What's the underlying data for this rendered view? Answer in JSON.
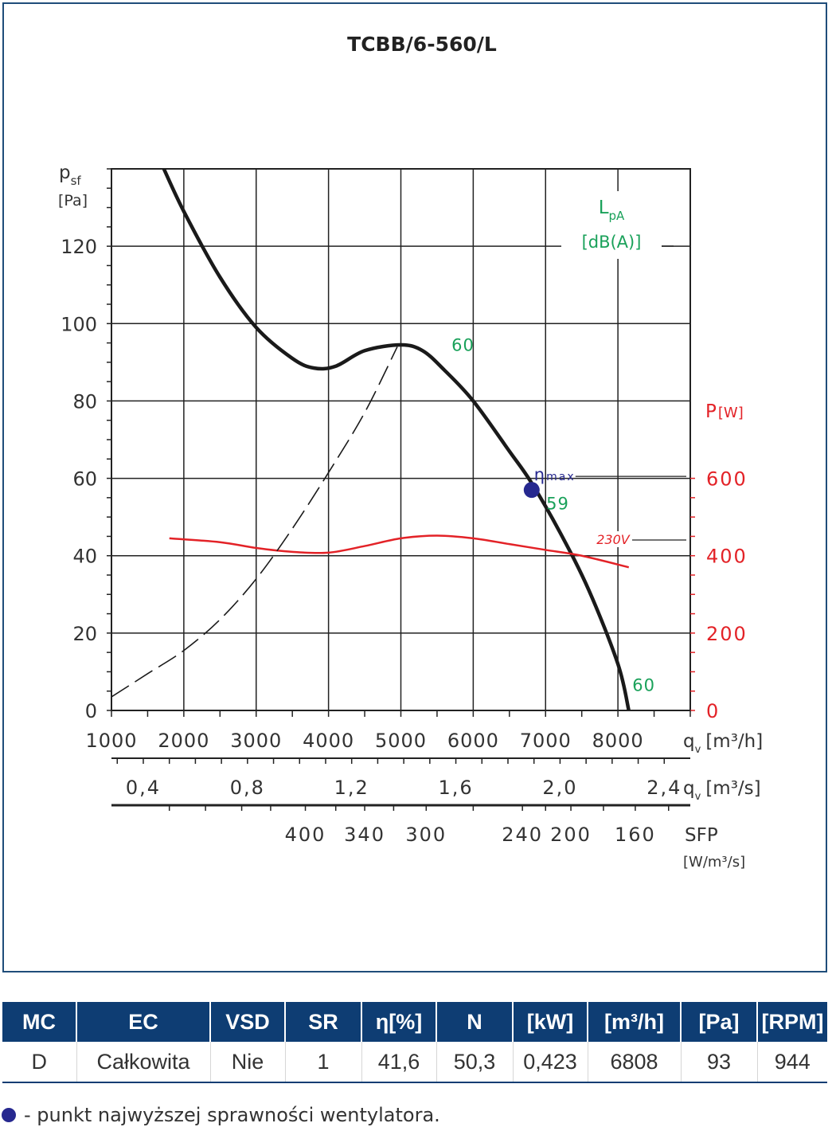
{
  "chart_data": {
    "type": "line",
    "title": "TCBB/6-560/L",
    "ylabel_main": "p",
    "ylabel_sub": "sf",
    "ylabel_unit": "[Pa]",
    "ylim": [
      0,
      140
    ],
    "yticks": [
      0,
      20,
      40,
      60,
      80,
      100,
      120
    ],
    "power_label": "P",
    "power_unit": "[W]",
    "power_lim": [
      0,
      1400
    ],
    "power_ticks": [
      0,
      200,
      400,
      600
    ],
    "xlabel": "q",
    "xlabel_sub": "v",
    "xlabel_unit": "[m³/h]",
    "xlim": [
      1000,
      9000
    ],
    "xticks": [
      1000,
      2000,
      3000,
      4000,
      5000,
      6000,
      7000,
      8000
    ],
    "x2label": "q",
    "x2label_sub": "v",
    "x2label_unit": "[m³/s]",
    "x2ticks": [
      "0,4",
      "0,8",
      "1,2",
      "1,6",
      "2,0",
      "2,4"
    ],
    "x2tick_values": [
      0.4,
      0.8,
      1.2,
      1.6,
      2.0,
      2.4
    ],
    "sfp_label": "SFP",
    "sfp_unit": "[W/m³/s]",
    "sfp_ticks": [
      "400",
      "340",
      "300",
      "240",
      "200",
      "160"
    ],
    "sfp_tick_flow": [
      3680,
      4500,
      5350,
      6680,
      7350,
      8240
    ],
    "lpa_label": "L",
    "lpa_sub": "pA",
    "lpa_unit": "[dB(A)]",
    "series": [
      {
        "id": "pressure",
        "color": "#1a1a1a",
        "x": [
          1700,
          2000,
          2500,
          3000,
          3500,
          3800,
          4100,
          4500,
          5000,
          5300,
          5600,
          6000,
          6500,
          6800,
          7200,
          7600,
          8000,
          8150
        ],
        "y": [
          141,
          129,
          112,
          99,
          91,
          88.5,
          89,
          93,
          94.5,
          93,
          88,
          80,
          67,
          59,
          46,
          31,
          12,
          0
        ]
      },
      {
        "id": "power",
        "label": "230V",
        "color": "#e32227",
        "x": [
          1800,
          2500,
          3000,
          3500,
          4000,
          4500,
          5000,
          5500,
          6000,
          6500,
          7000,
          7500,
          8150
        ],
        "y": [
          445,
          435,
          420,
          410,
          408,
          425,
          445,
          452,
          445,
          430,
          415,
          400,
          370
        ]
      },
      {
        "id": "system",
        "style": "dashed",
        "color": "#1a1a1a",
        "x": [
          1000,
          1500,
          2000,
          2500,
          3000,
          3500,
          4000,
          4500,
          4950
        ],
        "y": [
          3.5,
          9.5,
          15.5,
          23.5,
          34,
          47,
          61.5,
          77,
          94
        ]
      }
    ],
    "sound_labels": [
      {
        "text": "60",
        "x": 5700,
        "y": 93
      },
      {
        "text": "59",
        "x": 7010,
        "y": 52
      },
      {
        "text": "60",
        "x": 8200,
        "y": 5
      }
    ],
    "eta_point": {
      "x": 6808,
      "y": 57
    },
    "eta_label_main": "η",
    "eta_label_sub": "max",
    "grid": true
  },
  "table": {
    "headers": [
      "MC",
      "EC",
      "VSD",
      "SR",
      "η[%]",
      "N",
      "[kW]",
      "[m³/h]",
      "[Pa]",
      "[RPM]"
    ],
    "row": [
      "D",
      "Całkowita",
      "Nie",
      "1",
      "41,6",
      "50,3",
      "0,423",
      "6808",
      "93",
      "944"
    ]
  },
  "footnote": "- punkt najwyższej sprawności wentylatora.",
  "colors": {
    "navy": "#0e3d73",
    "eta": "#26288f",
    "sound": "#1aa15a",
    "power": "#e32227"
  }
}
